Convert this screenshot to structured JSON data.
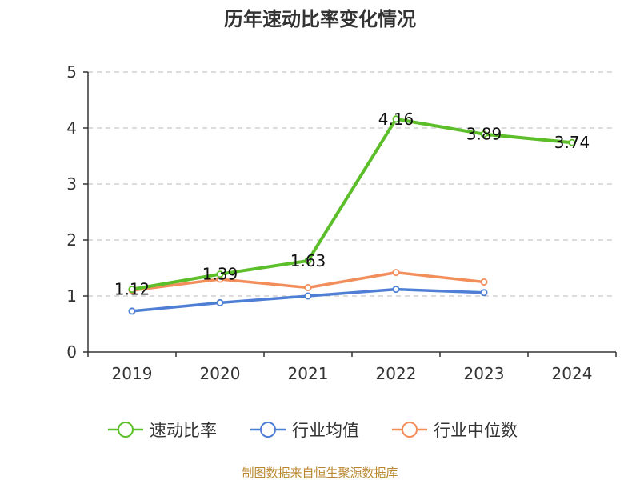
{
  "chart_data": {
    "type": "line",
    "title": "历年速动比率变化情况",
    "categories": [
      "2019",
      "2020",
      "2021",
      "2022",
      "2023",
      "2024"
    ],
    "y_ticks": [
      "0",
      "1",
      "2",
      "3",
      "4",
      "5"
    ],
    "ylim": [
      0,
      5
    ],
    "grid": "horizontal-dashed",
    "legend_position": "bottom",
    "series": [
      {
        "name": "速动比率",
        "values": [
          1.12,
          1.39,
          1.63,
          4.16,
          3.89,
          3.74
        ],
        "color": "#5cbf2a",
        "labels": [
          "1.12",
          "1.39",
          "1.63",
          "4.16",
          "3.89",
          "3.74"
        ]
      },
      {
        "name": "行业均值",
        "values": [
          0.73,
          0.88,
          1.0,
          1.12,
          1.06,
          null
        ],
        "color": "#4f7fd4"
      },
      {
        "name": "行业中位数",
        "values": [
          1.1,
          1.3,
          1.15,
          1.42,
          1.25,
          null
        ],
        "color": "#f28e5b"
      }
    ]
  },
  "source": {
    "text": "制图数据来自恒生聚源数据库",
    "color": "#b8872f"
  }
}
